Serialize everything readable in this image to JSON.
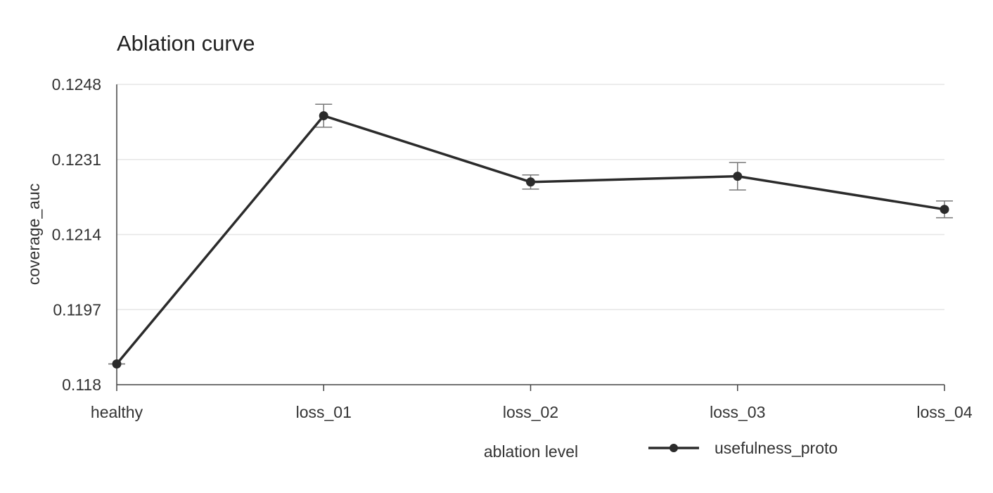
{
  "chart_data": {
    "type": "line",
    "title": "Ablation curve",
    "xlabel": "ablation level",
    "ylabel": "coverage_auc",
    "categories": [
      "healthy",
      "loss_01",
      "loss_02",
      "loss_03",
      "loss_04"
    ],
    "y_ticks": [
      "0.118",
      "0.1197",
      "0.1214",
      "0.1231",
      "0.1248"
    ],
    "ylim": [
      0.118,
      0.1248
    ],
    "grid": true,
    "legend_position": "bottom-center",
    "series": [
      {
        "name": "usefulness_proto",
        "color": "#2b2b2b",
        "values": [
          0.11847,
          0.12409,
          0.12259,
          0.12272,
          0.12197
        ],
        "error": [
          0.0,
          0.00026,
          0.00016,
          0.00031,
          0.00019
        ]
      }
    ]
  }
}
